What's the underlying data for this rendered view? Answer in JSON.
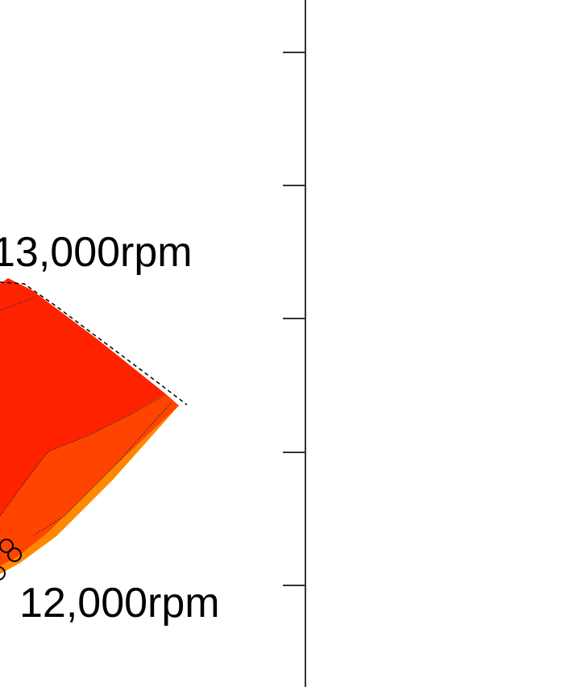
{
  "chart_data": {
    "type": "contour",
    "annotations": [
      "13,000rpm",
      "12,000rpm"
    ]
  }
}
